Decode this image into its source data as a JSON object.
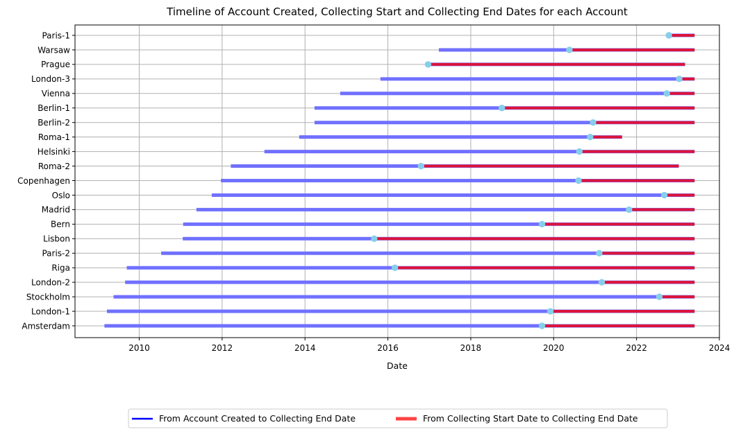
{
  "chart_data": {
    "type": "timeline",
    "title": "Timeline of Account Created, Collecting Start and Collecting End Dates for each Account",
    "xlabel": "Date",
    "ylabel": "",
    "xlim": [
      2008.45,
      2024.0
    ],
    "xticks": [
      "2010",
      "2012",
      "2014",
      "2016",
      "2018",
      "2020",
      "2022",
      "2024"
    ],
    "grid": true,
    "legend": {
      "placement": "bottom-center",
      "entries": [
        {
          "label": "From Account Created to Collecting End Date",
          "color": "#0000ff"
        },
        {
          "label": "From Collecting Start Date to Collecting End Date",
          "color": "#ff4444"
        }
      ]
    },
    "colors": {
      "created_bar": "#7070ff",
      "collecting_bar": "#dc143c",
      "collecting_start_marker": "#87ceeb",
      "grid": "#b0b0b0"
    },
    "accounts": [
      {
        "name": "Paris-1",
        "created": 2022.78,
        "collecting_start": 2022.78,
        "collecting_end": 2023.4
      },
      {
        "name": "Warsaw",
        "created": 2017.23,
        "collecting_start": 2020.38,
        "collecting_end": 2023.4
      },
      {
        "name": "Prague",
        "created": 2016.97,
        "collecting_start": 2016.97,
        "collecting_end": 2023.17
      },
      {
        "name": "London-3",
        "created": 2015.82,
        "collecting_start": 2023.03,
        "collecting_end": 2023.4
      },
      {
        "name": "Vienna",
        "created": 2014.85,
        "collecting_start": 2022.73,
        "collecting_end": 2023.4
      },
      {
        "name": "Berlin-1",
        "created": 2014.23,
        "collecting_start": 2018.75,
        "collecting_end": 2023.4
      },
      {
        "name": "Berlin-2",
        "created": 2014.23,
        "collecting_start": 2020.95,
        "collecting_end": 2023.4
      },
      {
        "name": "Roma-1",
        "created": 2013.86,
        "collecting_start": 2020.88,
        "collecting_end": 2021.65
      },
      {
        "name": "Helsinki",
        "created": 2013.02,
        "collecting_start": 2020.62,
        "collecting_end": 2023.4
      },
      {
        "name": "Roma-2",
        "created": 2012.21,
        "collecting_start": 2016.8,
        "collecting_end": 2023.02
      },
      {
        "name": "Copenhagen",
        "created": 2011.97,
        "collecting_start": 2020.6,
        "collecting_end": 2023.4
      },
      {
        "name": "Oslo",
        "created": 2011.75,
        "collecting_start": 2022.67,
        "collecting_end": 2023.4
      },
      {
        "name": "Madrid",
        "created": 2011.38,
        "collecting_start": 2021.82,
        "collecting_end": 2023.4
      },
      {
        "name": "Bern",
        "created": 2011.06,
        "collecting_start": 2019.72,
        "collecting_end": 2023.4
      },
      {
        "name": "Lisbon",
        "created": 2011.05,
        "collecting_start": 2015.67,
        "collecting_end": 2023.4
      },
      {
        "name": "Paris-2",
        "created": 2010.53,
        "collecting_start": 2021.1,
        "collecting_end": 2023.4
      },
      {
        "name": "Riga",
        "created": 2009.7,
        "collecting_start": 2016.17,
        "collecting_end": 2023.4
      },
      {
        "name": "London-2",
        "created": 2009.66,
        "collecting_start": 2021.16,
        "collecting_end": 2023.4
      },
      {
        "name": "Stockholm",
        "created": 2009.38,
        "collecting_start": 2022.55,
        "collecting_end": 2023.4
      },
      {
        "name": "London-1",
        "created": 2009.22,
        "collecting_start": 2019.92,
        "collecting_end": 2023.4
      },
      {
        "name": "Amsterdam",
        "created": 2009.16,
        "collecting_start": 2019.72,
        "collecting_end": 2023.4
      }
    ]
  }
}
